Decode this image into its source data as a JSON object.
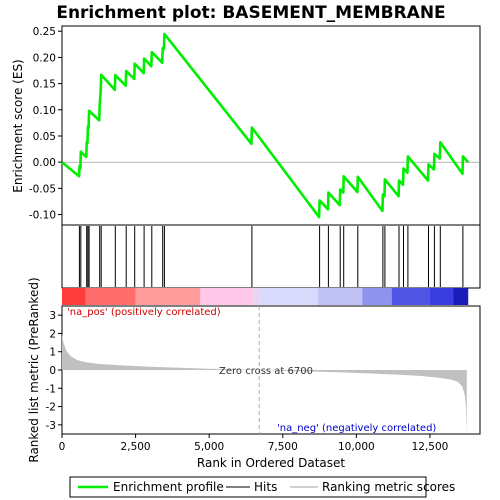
{
  "chart_data": {
    "type": "line",
    "title": "Enrichment plot: BASEMENT_MEMBRANE",
    "xlabel": "Rank in Ordered Dataset",
    "xlim": [
      0,
      14200
    ],
    "x_ticks": [
      0,
      2500,
      5000,
      7500,
      10000,
      12500
    ],
    "x_tick_labels": [
      "0",
      "2,500",
      "5,000",
      "7,500",
      "10,000",
      "12,500"
    ],
    "es_panel": {
      "ylabel": "Enrichment score (ES)",
      "ylim": [
        -0.12,
        0.26
      ],
      "y_ticks": [
        0.25,
        0.2,
        0.15,
        0.1,
        0.05,
        0.0,
        -0.05,
        -0.1
      ],
      "y_tick_labels": [
        "0.25",
        "0.20",
        "0.15",
        "0.10",
        "0.05",
        "0.00",
        "-0.05",
        "-0.10"
      ],
      "grid": false,
      "series_color": "#00ee00",
      "hits": [
        590,
        640,
        840,
        880,
        920,
        1280,
        1330,
        1810,
        2180,
        2470,
        2790,
        3050,
        3420,
        3480,
        6450,
        8750,
        9050,
        9450,
        9570,
        10050,
        10900,
        10970,
        11450,
        11600,
        11750,
        12450,
        12650,
        12850,
        13620
      ],
      "es_points": [
        [
          0,
          0.0
        ],
        [
          580,
          -0.027
        ],
        [
          595,
          -0.008
        ],
        [
          625,
          -0.012
        ],
        [
          640,
          0.02
        ],
        [
          825,
          0.01
        ],
        [
          840,
          0.038
        ],
        [
          865,
          0.037
        ],
        [
          880,
          0.068
        ],
        [
          905,
          0.066
        ],
        [
          920,
          0.098
        ],
        [
          1265,
          0.08
        ],
        [
          1280,
          0.108
        ],
        [
          1315,
          0.137
        ],
        [
          1330,
          0.167
        ],
        [
          1795,
          0.138
        ],
        [
          1810,
          0.166
        ],
        [
          2165,
          0.146
        ],
        [
          2180,
          0.174
        ],
        [
          2455,
          0.159
        ],
        [
          2470,
          0.188
        ],
        [
          2775,
          0.17
        ],
        [
          2790,
          0.198
        ],
        [
          3035,
          0.183
        ],
        [
          3050,
          0.21
        ],
        [
          3405,
          0.19
        ],
        [
          3420,
          0.218
        ],
        [
          3465,
          0.216
        ],
        [
          3480,
          0.245
        ],
        [
          6435,
          0.035
        ],
        [
          6450,
          0.066
        ],
        [
          8735,
          -0.105
        ],
        [
          8750,
          -0.073
        ],
        [
          9035,
          -0.09
        ],
        [
          9050,
          -0.058
        ],
        [
          9435,
          -0.082
        ],
        [
          9450,
          -0.052
        ],
        [
          9555,
          -0.058
        ],
        [
          9570,
          -0.027
        ],
        [
          10035,
          -0.057
        ],
        [
          10050,
          -0.028
        ],
        [
          10885,
          -0.093
        ],
        [
          10900,
          -0.062
        ],
        [
          10955,
          -0.065
        ],
        [
          10970,
          -0.033
        ],
        [
          11435,
          -0.065
        ],
        [
          11450,
          -0.035
        ],
        [
          11585,
          -0.043
        ],
        [
          11600,
          -0.012
        ],
        [
          11735,
          -0.02
        ],
        [
          11750,
          0.011
        ],
        [
          12435,
          -0.035
        ],
        [
          12450,
          -0.004
        ],
        [
          12635,
          -0.014
        ],
        [
          12650,
          0.016
        ],
        [
          12835,
          0.007
        ],
        [
          12850,
          0.038
        ],
        [
          13605,
          -0.022
        ],
        [
          13620,
          0.011
        ],
        [
          13800,
          0.0
        ]
      ]
    },
    "metric_panel": {
      "ylabel": "Ranked list metric (PreRanked)",
      "ylim": [
        -3.5,
        3.5
      ],
      "y_ticks": [
        3,
        2,
        1,
        0,
        -1,
        -2,
        -3
      ],
      "y_tick_labels": [
        "3",
        "2",
        "1",
        "0",
        "-1",
        "-2",
        "-3"
      ],
      "fill_color": "#c0c0c0",
      "metric_points": [
        [
          0,
          1.95
        ],
        [
          50,
          1.5
        ],
        [
          150,
          1.05
        ],
        [
          300,
          0.75
        ],
        [
          500,
          0.55
        ],
        [
          800,
          0.42
        ],
        [
          1200,
          0.34
        ],
        [
          2000,
          0.25
        ],
        [
          3000,
          0.18
        ],
        [
          4000,
          0.12
        ],
        [
          5000,
          0.07
        ],
        [
          6000,
          0.03
        ],
        [
          6700,
          0.0
        ],
        [
          7500,
          -0.04
        ],
        [
          8500,
          -0.08
        ],
        [
          9500,
          -0.13
        ],
        [
          10500,
          -0.19
        ],
        [
          11500,
          -0.26
        ],
        [
          12200,
          -0.33
        ],
        [
          12800,
          -0.42
        ],
        [
          13200,
          -0.52
        ],
        [
          13450,
          -0.65
        ],
        [
          13600,
          -0.9
        ],
        [
          13680,
          -1.35
        ],
        [
          13720,
          -2.0
        ],
        [
          13750,
          -3.4
        ]
      ],
      "pos_label": "'na_pos' (positively correlated)",
      "neg_label": "'na_neg' (negatively correlated)",
      "zero_cross_label": "Zero cross at 6700",
      "zero_cross_x": 6700,
      "pos_color": "#cc0000",
      "neg_color": "#0000cc"
    },
    "colorbar": {
      "segments": [
        {
          "x0": 0,
          "x1": 800,
          "color": "#ff3b3b"
        },
        {
          "x0": 800,
          "x1": 2500,
          "color": "#ff6d6d"
        },
        {
          "x0": 2500,
          "x1": 4700,
          "color": "#ff9c9c"
        },
        {
          "x0": 4700,
          "x1": 6500,
          "color": "#ffc8e8"
        },
        {
          "x0": 6500,
          "x1": 6750,
          "color": "#e6d6f4"
        },
        {
          "x0": 6750,
          "x1": 8700,
          "color": "#d9d9fb"
        },
        {
          "x0": 8700,
          "x1": 10200,
          "color": "#c0c2f5"
        },
        {
          "x0": 10200,
          "x1": 11200,
          "color": "#8f93ee"
        },
        {
          "x0": 11200,
          "x1": 12500,
          "color": "#4f55e2"
        },
        {
          "x0": 12500,
          "x1": 13300,
          "color": "#3a3ee0"
        },
        {
          "x0": 13300,
          "x1": 13800,
          "color": "#1c1cb8"
        }
      ]
    },
    "legend": {
      "placement": "bottom",
      "entries": [
        {
          "label": "Enrichment profile",
          "color": "#00ee00"
        },
        {
          "label": "Hits",
          "color": "#000000"
        },
        {
          "label": "Ranking metric scores",
          "color": "#c0c0c0"
        }
      ]
    }
  }
}
